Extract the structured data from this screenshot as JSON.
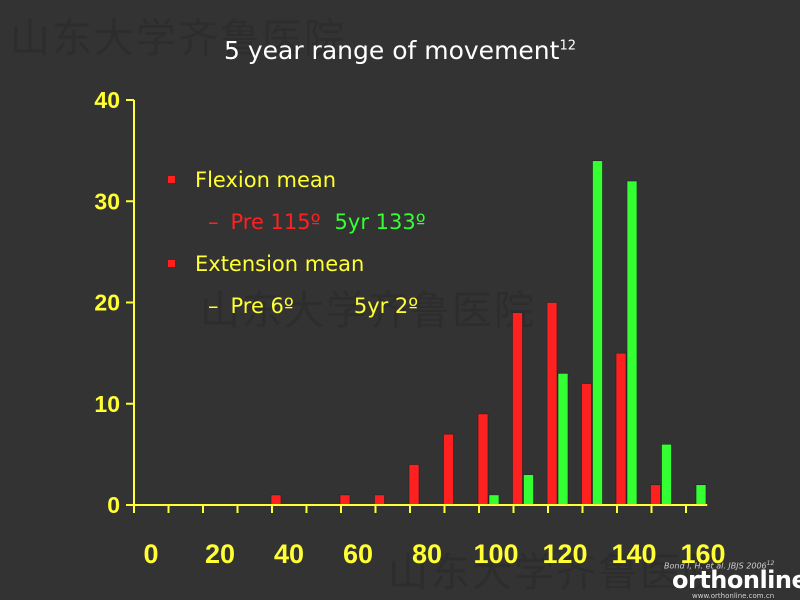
{
  "title": "5 year range of movement",
  "title_superscript": "12",
  "watermark": "山东大学齐鲁医院",
  "legend": {
    "flexion_heading": "Flexion mean",
    "flexion_dash": "–",
    "flexion_pre": "Pre 115º",
    "flexion_5yr": "5yr 133º",
    "extension_heading": "Extension mean",
    "extension_dash": "–",
    "extension_pre": "Pre 6º",
    "extension_5yr": "5yr 2º"
  },
  "citation": "Bond I, H. et al. JBJS 2006",
  "citation_superscript": "12",
  "logo": {
    "text": "orthonline",
    "url": "www.orthonline.com.cn"
  },
  "colors": {
    "background": "#333333",
    "axis": "#ffff33",
    "pre": "#ff2020",
    "five_year": "#33ff33"
  },
  "chart_data": {
    "type": "bar",
    "categories": [
      0,
      10,
      20,
      30,
      40,
      50,
      60,
      70,
      80,
      90,
      100,
      110,
      120,
      130,
      140,
      150,
      160
    ],
    "series": [
      {
        "values": [
          0,
          0,
          0,
          0,
          1,
          0,
          1,
          1,
          4,
          7,
          9,
          19,
          20,
          12,
          15,
          2,
          0
        ]
      },
      {
        "values": [
          0,
          0,
          0,
          0,
          0,
          0,
          0,
          0,
          0,
          0,
          1,
          3,
          13,
          34,
          32,
          6,
          2
        ]
      }
    ],
    "x_tick_labels": [
      "0",
      "20",
      "40",
      "60",
      "80",
      "100",
      "120",
      "140",
      "160"
    ],
    "y_tick_labels": [
      "0",
      "10",
      "20",
      "30",
      "40"
    ],
    "ylim": [
      0,
      40
    ],
    "xlim": [
      0,
      165
    ],
    "grid": false
  }
}
